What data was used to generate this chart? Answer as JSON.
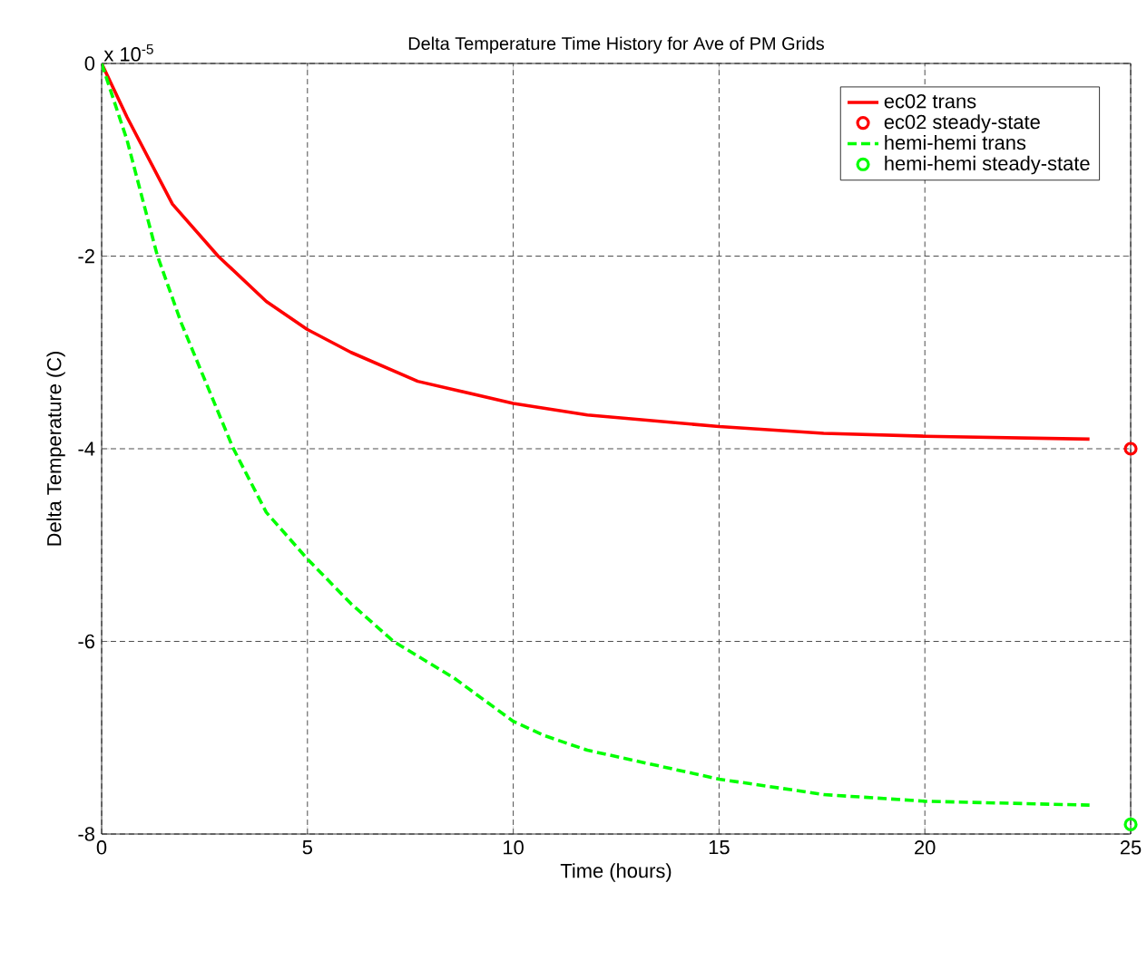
{
  "chart_data": {
    "type": "line",
    "title": "Delta Temperature Time History for Ave of PM Grids",
    "xlabel": "Time (hours)",
    "ylabel": "Delta Temperature (C)",
    "annotations": [
      "x 10$^{-5}$"
    ],
    "xlim": [
      0,
      25
    ],
    "ylim": [
      -8,
      0
    ],
    "xticks": [
      0,
      5,
      10,
      15,
      20,
      25
    ],
    "yticks": [
      -8,
      -6,
      -4,
      -2,
      0
    ],
    "grid": true,
    "legend": "top right",
    "series": [
      {
        "name": "ec02 trans",
        "type": "line",
        "color": "#ff0000",
        "line_style": "solid",
        "marker": "none",
        "x": [
          0,
          0.62,
          1.72,
          2.83,
          4.0,
          4.99,
          6.06,
          7.68,
          10.0,
          11.8,
          15.0,
          17.54,
          20.0,
          24.0
        ],
        "values": [
          0,
          -0.56,
          -1.46,
          -2.0,
          -2.47,
          -2.76,
          -3.0,
          -3.3,
          -3.53,
          -3.65,
          -3.77,
          -3.84,
          -3.87,
          -3.9
        ]
      },
      {
        "name": "ec02 steady-state",
        "type": "scatter",
        "color": "#ff0000",
        "marker": "circle",
        "x": [
          25
        ],
        "values": [
          -4.0
        ]
      },
      {
        "name": "hemi-hemi trans",
        "type": "line",
        "color": "#00ff00",
        "line_style": "dashed",
        "marker": "none",
        "x": [
          0,
          0.62,
          1.35,
          1.94,
          3.19,
          4.0,
          4.99,
          6.06,
          7.09,
          8.56,
          10.0,
          10.77,
          11.8,
          15.0,
          17.54,
          20.0,
          24.0
        ],
        "values": [
          0,
          -0.8,
          -1.99,
          -2.7,
          -3.99,
          -4.66,
          -5.14,
          -5.61,
          -6.0,
          -6.38,
          -6.83,
          -6.98,
          -7.13,
          -7.43,
          -7.59,
          -7.66,
          -7.7
        ]
      },
      {
        "name": "hemi-hemi steady-state",
        "type": "scatter",
        "color": "#00ff00",
        "marker": "circle",
        "x": [
          25
        ],
        "values": [
          -7.9
        ]
      }
    ]
  }
}
